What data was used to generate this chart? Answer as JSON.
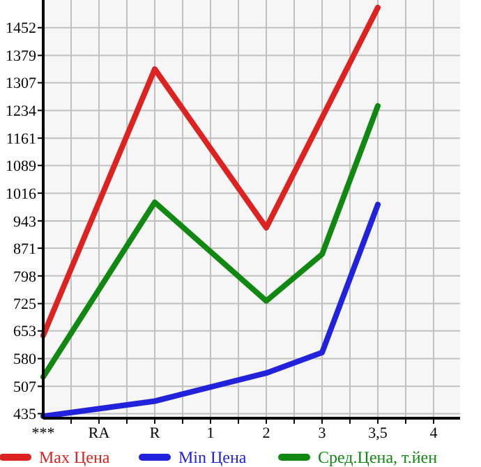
{
  "chart_data": {
    "type": "line",
    "categories": [
      "***",
      "RA",
      "R",
      "1",
      "2",
      "3",
      "3,5",
      "4"
    ],
    "series": [
      {
        "name": "Max Цена",
        "color": "#dd2222",
        "values": [
          641,
          null,
          1343,
          null,
          925,
          null,
          1505,
          null
        ]
      },
      {
        "name": "Min Цена",
        "color": "#2222dd",
        "values": [
          428,
          null,
          468,
          null,
          542,
          596,
          986,
          null
        ]
      },
      {
        "name": "Сред.Цена, т.йен",
        "color": "#118811",
        "values": [
          532,
          null,
          992,
          null,
          732,
          855,
          1246,
          null
        ]
      }
    ],
    "ylim": [
      423,
      1525
    ],
    "yticks": [
      435,
      507,
      580,
      653,
      725,
      798,
      871,
      943,
      1016,
      1089,
      1161,
      1234,
      1307,
      1379,
      1452
    ],
    "grid": true,
    "legend": "bottom",
    "marker": "none",
    "line_style": "solid"
  }
}
